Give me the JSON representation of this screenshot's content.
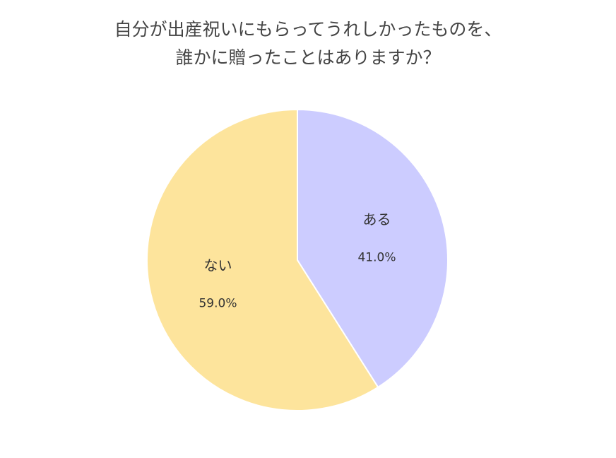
{
  "chart_data": {
    "type": "pie",
    "title": "自分が出産祝いにもらってうれしかったものを、誰かに贈ったことはありますか？",
    "title_lines": [
      "自分が出産祝いにもらってうれしかったものを、",
      "誰かに贈ったことはありますか？"
    ],
    "categories": [
      "ある",
      "ない"
    ],
    "values": [
      41.0,
      59.0
    ],
    "value_labels": [
      "41.0%",
      "59.0%"
    ],
    "colors": [
      "#ccccff",
      "#fde49c"
    ],
    "start_angle": "12 o'clock",
    "direction": "clockwise",
    "legend": "none"
  }
}
